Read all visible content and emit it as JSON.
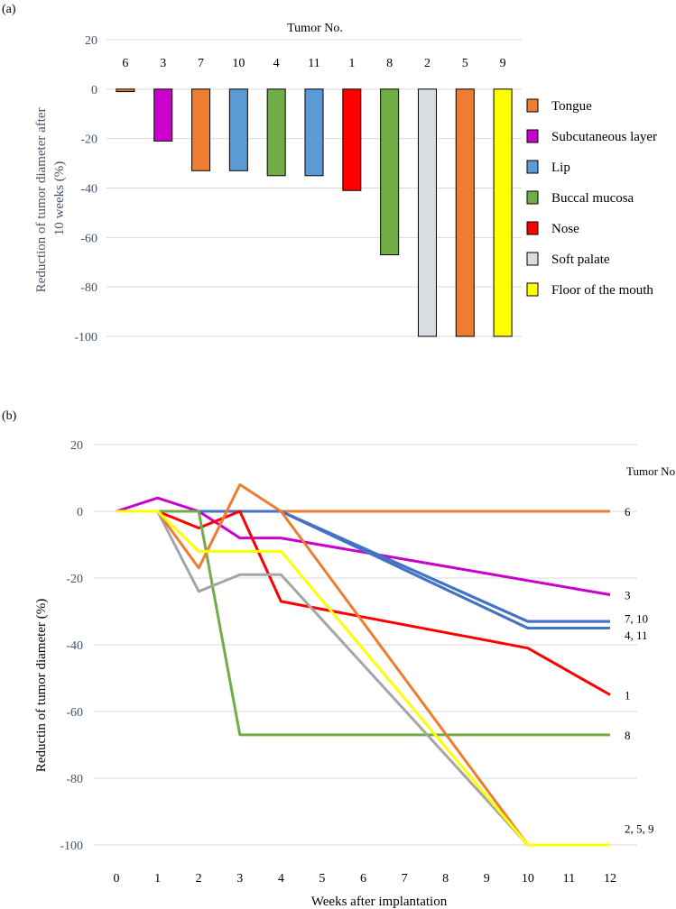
{
  "chart_data": [
    {
      "type": "bar",
      "panel_label": "(a)",
      "title": "Tumor No.",
      "ylabel": "Reduction of tumor diameter after 10 weeks (%)",
      "ylabel_lines": [
        "Reduction of tumor diameter after",
        "10 weeks (%)"
      ],
      "ylim": [
        -100,
        20
      ],
      "yticks": [
        20,
        0,
        -20,
        -40,
        -60,
        -80,
        -100
      ],
      "grid": true,
      "categories": [
        "6",
        "3",
        "7",
        "10",
        "4",
        "11",
        "1",
        "8",
        "2",
        "5",
        "9"
      ],
      "values": [
        -1,
        -21,
        -33,
        -33,
        -35,
        -35,
        -41,
        -67,
        -100,
        -100,
        -100
      ],
      "bar_sites": [
        "Tongue",
        "Subcutaneous layer",
        "Tongue",
        "Lip",
        "Buccal mucosa",
        "Lip",
        "Nose",
        "Buccal mucosa",
        "Soft palate",
        "Tongue",
        "Floor of the mouth"
      ],
      "legend_position": "right",
      "legend": [
        {
          "label": "Tongue",
          "color": "#ed7d31"
        },
        {
          "label": "Subcutaneous layer",
          "color": "#cc00cc"
        },
        {
          "label": "Lip",
          "color": "#5b9bd5"
        },
        {
          "label": "Buccal mucosa",
          "color": "#70ad47"
        },
        {
          "label": "Nose",
          "color": "#ff0000"
        },
        {
          "label": "Soft palate",
          "color": "#d9dce3"
        },
        {
          "label": "Floor of the mouth",
          "color": "#ffff00"
        }
      ]
    },
    {
      "type": "line",
      "panel_label": "(b)",
      "xlabel": "Weeks after implantation",
      "ylabel": "Reductin of tumor diameter (%)",
      "ylim": [
        -100,
        20
      ],
      "yticks": [
        20,
        0,
        -20,
        -40,
        -60,
        -80,
        -100
      ],
      "x": [
        0,
        1,
        2,
        3,
        4,
        5,
        6,
        7,
        8,
        9,
        10,
        11,
        12
      ],
      "grid": true,
      "legend_title": "Tumor No.",
      "series": [
        {
          "name": "6",
          "color": "#ed7d31",
          "points": [
            [
              0,
              0
            ],
            [
              12,
              0
            ]
          ]
        },
        {
          "name": "3",
          "color": "#cc00cc",
          "points": [
            [
              0,
              0
            ],
            [
              1,
              4
            ],
            [
              2,
              0
            ],
            [
              3,
              -8
            ],
            [
              4,
              -8
            ],
            [
              12,
              -25
            ]
          ]
        },
        {
          "name": "7",
          "color": "#4472c4",
          "points": [
            [
              0,
              0
            ],
            [
              4,
              0
            ],
            [
              10,
              -33
            ],
            [
              12,
              -33
            ]
          ]
        },
        {
          "name": "10",
          "color": "#4472c4",
          "points": [
            [
              0,
              0
            ],
            [
              4,
              0
            ],
            [
              10,
              -33
            ],
            [
              12,
              -33
            ]
          ]
        },
        {
          "name": "4",
          "color": "#4472c4",
          "points": [
            [
              0,
              0
            ],
            [
              4,
              0
            ],
            [
              10,
              -35
            ],
            [
              12,
              -35
            ]
          ]
        },
        {
          "name": "11",
          "color": "#4472c4",
          "points": [
            [
              0,
              0
            ],
            [
              4,
              0
            ],
            [
              10,
              -35
            ],
            [
              12,
              -35
            ]
          ]
        },
        {
          "name": "1",
          "color": "#ff0000",
          "points": [
            [
              0,
              0
            ],
            [
              1,
              0
            ],
            [
              2,
              -5
            ],
            [
              3,
              0
            ],
            [
              4,
              -27
            ],
            [
              10,
              -41
            ],
            [
              12,
              -55
            ]
          ]
        },
        {
          "name": "8",
          "color": "#70ad47",
          "points": [
            [
              0,
              0
            ],
            [
              2,
              0
            ],
            [
              3,
              -67
            ],
            [
              12,
              -67
            ]
          ]
        },
        {
          "name": "2",
          "color": "#a5a5a5",
          "points": [
            [
              0,
              0
            ],
            [
              1,
              0
            ],
            [
              2,
              -24
            ],
            [
              3,
              -19
            ],
            [
              4,
              -19
            ],
            [
              10,
              -100
            ],
            [
              12,
              -100
            ]
          ]
        },
        {
          "name": "5",
          "color": "#ed7d31",
          "points": [
            [
              0,
              0
            ],
            [
              1,
              0
            ],
            [
              2,
              -17
            ],
            [
              3,
              8
            ],
            [
              4,
              0
            ],
            [
              10,
              -100
            ],
            [
              12,
              -100
            ]
          ]
        },
        {
          "name": "9",
          "color": "#ffff00",
          "points": [
            [
              0,
              0
            ],
            [
              1,
              0
            ],
            [
              2,
              -12
            ],
            [
              3,
              -12
            ],
            [
              4,
              -12
            ],
            [
              10,
              -100
            ],
            [
              12,
              -100
            ]
          ]
        }
      ],
      "end_labels": [
        {
          "text": "6",
          "y": 0
        },
        {
          "text": "3",
          "y": -25
        },
        {
          "text": "7, 10",
          "y": -32
        },
        {
          "text": "4, 11",
          "y": -37
        },
        {
          "text": "1",
          "y": -55
        },
        {
          "text": "8",
          "y": -67
        },
        {
          "text": "2, 5, 9",
          "y": -95
        }
      ]
    }
  ]
}
